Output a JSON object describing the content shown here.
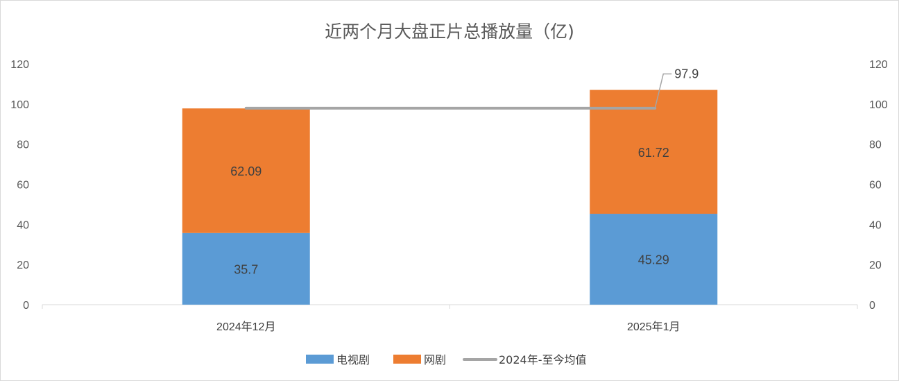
{
  "chart_data": {
    "type": "bar",
    "stacked": true,
    "title": "近两个月大盘正片总播放量（亿)",
    "categories": [
      "2024年12月",
      "2025年1月"
    ],
    "series": [
      {
        "name": "电视剧",
        "type": "bar",
        "values": [
          35.7,
          45.29
        ],
        "color": "#5b9bd5"
      },
      {
        "name": "网剧",
        "type": "bar",
        "values": [
          62.09,
          61.72
        ],
        "color": "#ed7d31"
      },
      {
        "name": "2024年-至今均值",
        "type": "line",
        "values": [
          97.9,
          97.9
        ],
        "color": "#a5a5a5"
      }
    ],
    "line_label": "97.9",
    "ylim": [
      0,
      120
    ],
    "yticks": [
      "0",
      "20",
      "40",
      "60",
      "80",
      "100",
      "120"
    ],
    "secondary_ylim": [
      0,
      120
    ],
    "secondary_yticks": [
      "0",
      "20",
      "40",
      "60",
      "80",
      "100",
      "120"
    ],
    "grid": false,
    "legend_position": "bottom"
  }
}
